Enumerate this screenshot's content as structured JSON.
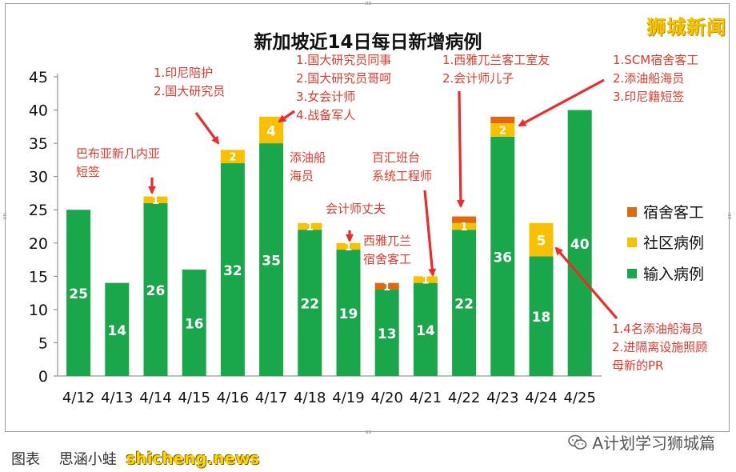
{
  "chart_data": {
    "type": "bar",
    "stacked": true,
    "title": "新加坡近14日每日新增病例",
    "categories": [
      "4/12",
      "4/13",
      "4/14",
      "4/15",
      "4/16",
      "4/17",
      "4/18",
      "4/19",
      "4/20",
      "4/21",
      "4/22",
      "4/23",
      "4/24",
      "4/25"
    ],
    "series": [
      {
        "name": "输入病例",
        "color": "#1aa64a",
        "values": [
          25,
          14,
          26,
          16,
          32,
          35,
          22,
          19,
          13,
          14,
          22,
          36,
          18,
          40
        ]
      },
      {
        "name": "社区病例",
        "color": "#f9c000",
        "values": [
          0,
          0,
          1,
          0,
          2,
          4,
          1,
          1,
          0,
          1,
          1,
          2,
          5,
          0
        ]
      },
      {
        "name": "宿舍客工",
        "color": "#dd6a10",
        "values": [
          0,
          0,
          0,
          0,
          0,
          0,
          0,
          0,
          1,
          0,
          1,
          1,
          0,
          0
        ]
      }
    ],
    "data_labels": {
      "输入病例": [
        "25",
        "14",
        "26",
        "16",
        "32",
        "35",
        "22",
        "19",
        "13",
        "14",
        "22",
        "36",
        "18",
        "40"
      ],
      "社区病例": [
        "",
        "",
        "1",
        "",
        "2",
        "4",
        "1",
        "1",
        "",
        "1",
        "1",
        "2",
        "5",
        ""
      ],
      "宿舍客工": [
        "",
        "",
        "",
        "",
        "",
        "",
        "",
        "",
        "1",
        "",
        "",
        "",
        "",
        ""
      ]
    },
    "yticks": [
      0,
      5,
      10,
      15,
      20,
      25,
      30,
      35,
      40,
      45
    ],
    "ylim": [
      0,
      45
    ],
    "legend": {
      "placement": "right",
      "order": [
        "宿舍客工",
        "社区病例",
        "输入病例"
      ]
    },
    "grid": false,
    "xlabel": "",
    "ylabel": "",
    "annotations": [
      {
        "target": "4/14",
        "lines": [
          "巴布亚新几内亚",
          "短签"
        ]
      },
      {
        "target": "4/16",
        "lines": [
          "1.印尼陪护",
          "2.国大研究员"
        ]
      },
      {
        "target": "4/17",
        "lines": [
          "1.国大研究员同事",
          "2.国大研究员哥呵",
          "3.女会计师",
          "4.战备军人"
        ]
      },
      {
        "target": "4/18",
        "lines": [
          "添油船",
          "海员"
        ]
      },
      {
        "target": "4/19",
        "lines": [
          "会计师丈夫"
        ]
      },
      {
        "target": "4/20",
        "lines": [
          "西雅兀兰",
          "宿舍客工"
        ]
      },
      {
        "target": "4/21",
        "lines": [
          "百汇班台",
          "系统工程师"
        ]
      },
      {
        "target": "4/22",
        "lines": [
          "1.西雅兀兰客工室友",
          "2.会计师儿子"
        ]
      },
      {
        "target": "4/23",
        "lines": [
          "1.SCM宿舍客工",
          "2.添油船海员",
          "3.印尼籍短签"
        ]
      },
      {
        "target": "4/24",
        "lines": [
          "1.4名添油船海员",
          "2.进隔离设施照顾",
          "母新的PR"
        ]
      }
    ]
  },
  "watermark": "狮城新闻",
  "source": {
    "label": "图表",
    "author": "思涵小蛙",
    "site": "shicheng.news"
  },
  "credit": "A计划学习狮城篇",
  "colors": {
    "annotation": "#e33a2e",
    "arrow": "#ee2a2a"
  }
}
